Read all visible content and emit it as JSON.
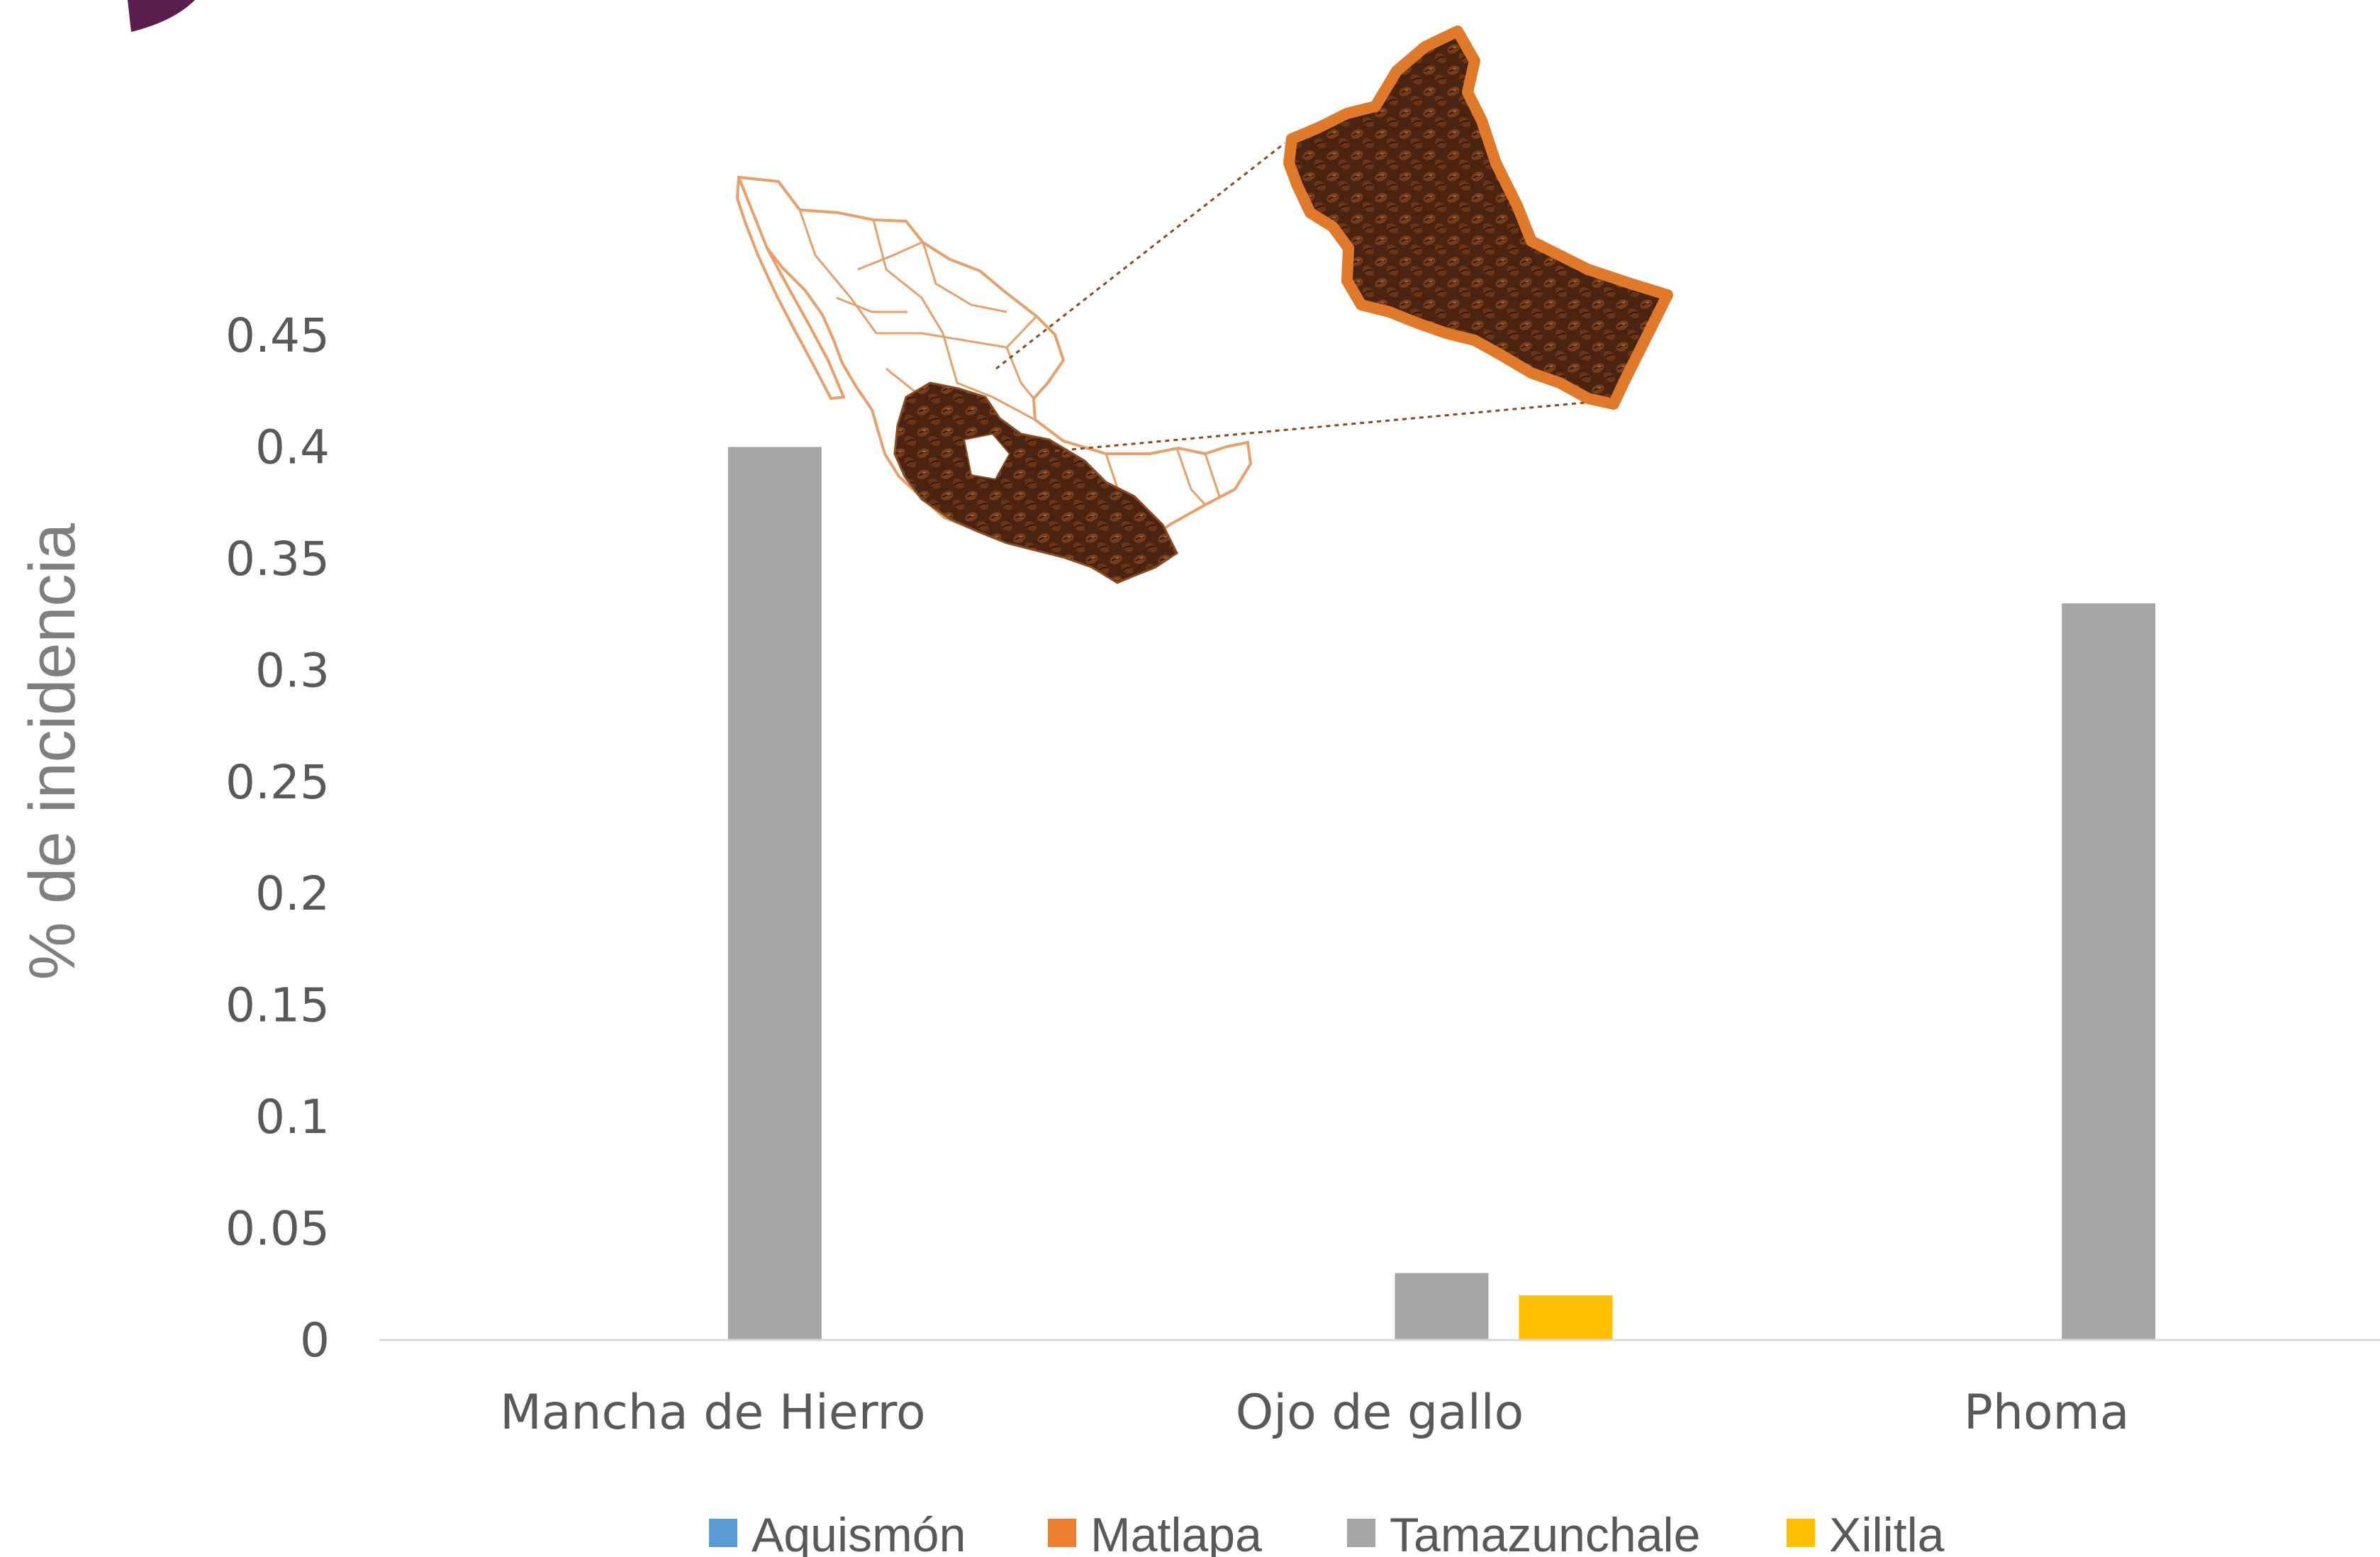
{
  "chart_data": {
    "type": "bar",
    "ylabel": "% de incidencia",
    "xlabel": "",
    "ylim": [
      0,
      0.45
    ],
    "yticks": [
      "0",
      "0.05",
      "0.1",
      "0.15",
      "0.2",
      "0.25",
      "0.3",
      "0.35",
      "0.4",
      "0.45"
    ],
    "categories": [
      "Mancha de Hierro",
      "Ojo de gallo",
      "Phoma"
    ],
    "series": [
      {
        "name": "Aquismón",
        "color": "#5B9BD5",
        "values": [
          0,
          0,
          0
        ]
      },
      {
        "name": "Matlapa",
        "color": "#ED7D31",
        "values": [
          0,
          0,
          0
        ]
      },
      {
        "name": "Tamazunchale",
        "color": "#A5A5A5",
        "values": [
          0.4,
          0.03,
          0.33
        ]
      },
      {
        "name": "Xilitla",
        "color": "#FFC000",
        "values": [
          0,
          0.02,
          0
        ]
      }
    ],
    "grid": false,
    "legend": "bottom"
  },
  "images": {
    "mexico_map": "map-of-mexico-with-coffee-region",
    "coffee_region": "coffee-bean-region-inset"
  }
}
